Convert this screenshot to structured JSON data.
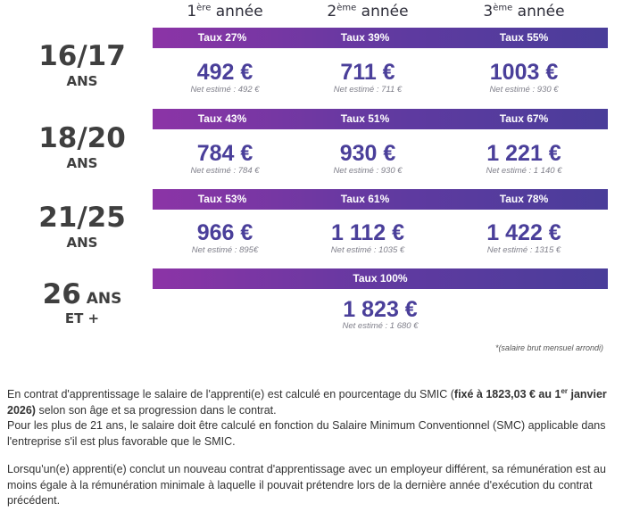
{
  "headers": [
    {
      "num": "1",
      "sup": "ère",
      "text": " année"
    },
    {
      "num": "2",
      "sup": "ème",
      "text": " année"
    },
    {
      "num": "3",
      "sup": "ème",
      "text": " année"
    }
  ],
  "groups": [
    {
      "age": "16/17",
      "unit": "ANS",
      "rates": [
        "Taux 27%",
        "Taux 39%",
        "Taux 55%"
      ],
      "values": [
        "492 €",
        "711 €",
        "1003 €"
      ],
      "nets": [
        "Net estimé : 492 €",
        "Net estimé : 711 €",
        "Net estimé : 930 €"
      ]
    },
    {
      "age": "18/20",
      "unit": "ANS",
      "rates": [
        "Taux 43%",
        "Taux 51%",
        "Taux 67%"
      ],
      "values": [
        "784 €",
        "930 €",
        "1 221 €"
      ],
      "nets": [
        "Net estimé : 784 €",
        "Net estimé : 930 €",
        "Net estimé : 1 140 €"
      ]
    },
    {
      "age": "21/25",
      "unit": "ANS",
      "rates": [
        "Taux 53%",
        "Taux 61%",
        "Taux 78%"
      ],
      "values": [
        "966 €",
        "1 112 €",
        "1 422 €"
      ],
      "nets": [
        "Net estimé : 895€",
        "Net estimé : 1035 €",
        "Net estimé : 1315 €"
      ]
    }
  ],
  "last_group": {
    "age": "26",
    "age_unit_inline": " ANS",
    "unit": "ET +",
    "rate": "Taux 100%",
    "value": "1 823 €",
    "net": "Net estimé : 1 680 €"
  },
  "footnote": "*(salaire brut mensuel arrondi)",
  "para1": {
    "before": "En contrat d'apprentissage le salaire de l'apprenti(e) est calculé en pourcentage du SMIC (",
    "bold_a": "fixé à 1823,03 € au 1",
    "bold_sup": "er",
    "bold_b": " janvier 2026)",
    "after": " selon son âge et sa progression dans le contrat."
  },
  "para2": "Pour les plus de 21 ans, le salaire doit être calculé en fonction du Salaire Minimum Conventionnel (SMC) applicable dans l'entreprise s'il est plus favorable que le SMIC.",
  "para3": "Lorsqu'un(e) apprenti(e) conclut un nouveau contrat d'apprentissage avec un employeur différent, sa rémunération est au moins égale à la rémunération minimale à laquelle il pouvait prétendre lors de la dernière année d'exécution du contrat précédent."
}
